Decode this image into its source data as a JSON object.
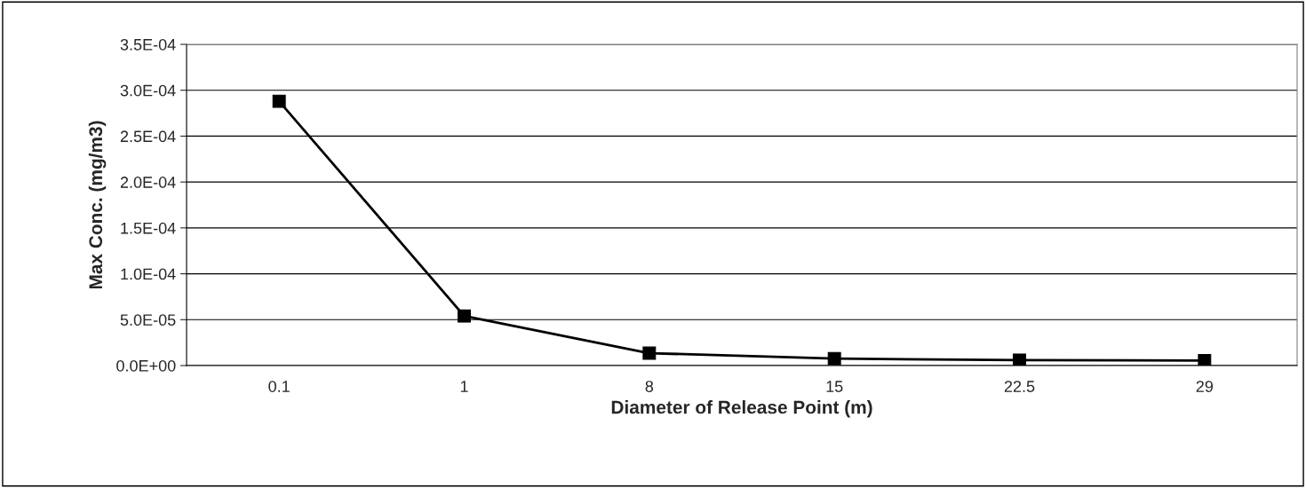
{
  "chart_data": {
    "type": "line",
    "xlabel": "Diameter of Release Point (m)",
    "ylabel": "Max Conc. (mg/m3)",
    "categories": [
      "0.1",
      "1",
      "8",
      "15",
      "22.5",
      "29"
    ],
    "series": [
      {
        "color": "#000000",
        "values": [
          0.000288,
          5.4e-05,
          1.35e-05,
          7.6e-06,
          5.9e-06,
          5.4e-06
        ]
      }
    ],
    "ylim": [
      0,
      0.00035
    ],
    "yticks": [
      {
        "value": 0,
        "label": "0.0E+00"
      },
      {
        "value": 5e-05,
        "label": "5.0E-05"
      },
      {
        "value": 0.0001,
        "label": "1.0E-04"
      },
      {
        "value": 0.00015,
        "label": "1.5E-04"
      },
      {
        "value": 0.0002,
        "label": "2.0E-04"
      },
      {
        "value": 0.00025,
        "label": "2.5E-04"
      },
      {
        "value": 0.0003,
        "label": "3.0E-04"
      },
      {
        "value": 0.00035,
        "label": "3.5E-04"
      }
    ],
    "grid": "y",
    "marker": "square",
    "line_style": "solid",
    "legend": false
  }
}
